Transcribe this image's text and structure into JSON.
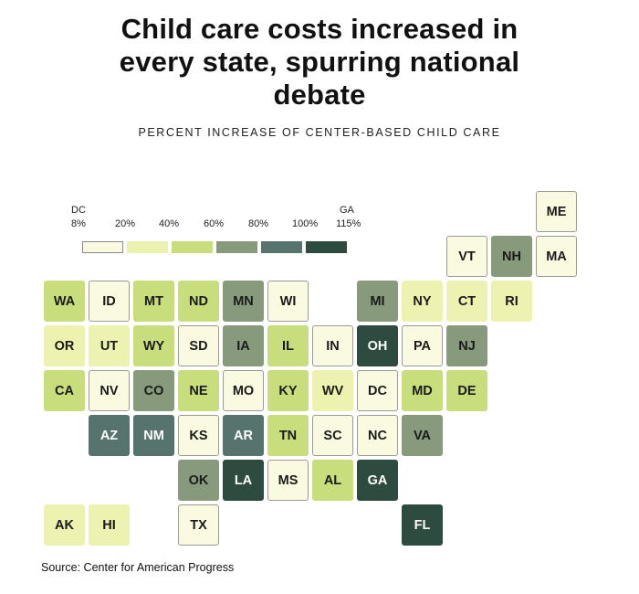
{
  "title": {
    "line1": "Child care costs increased in",
    "line2": "every state, spurring national",
    "line3": "debate"
  },
  "subtitle": "PERCENT INCREASE OF CENTER-BASED CHILD CARE",
  "legend": {
    "min_state": "DC",
    "max_state": "GA",
    "breaks": [
      "8%",
      "20%",
      "40%",
      "60%",
      "80%",
      "100%",
      "115%"
    ],
    "colors": [
      "#fafae0",
      "#eef2b0",
      "#c8de7c",
      "#879a7b",
      "#56736e",
      "#2e4b40"
    ]
  },
  "source": "Source: Center for American Progress",
  "states": [
    {
      "code": "ME",
      "bin": 0
    },
    {
      "code": "VT",
      "bin": 0
    },
    {
      "code": "NH",
      "bin": 3
    },
    {
      "code": "MA",
      "bin": 0
    },
    {
      "code": "WA",
      "bin": 2
    },
    {
      "code": "ID",
      "bin": 0
    },
    {
      "code": "MT",
      "bin": 2
    },
    {
      "code": "ND",
      "bin": 2
    },
    {
      "code": "MN",
      "bin": 3
    },
    {
      "code": "WI",
      "bin": 0
    },
    {
      "code": "MI",
      "bin": 3
    },
    {
      "code": "NY",
      "bin": 1
    },
    {
      "code": "CT",
      "bin": 1
    },
    {
      "code": "RI",
      "bin": 1
    },
    {
      "code": "OR",
      "bin": 1
    },
    {
      "code": "UT",
      "bin": 1
    },
    {
      "code": "WY",
      "bin": 2
    },
    {
      "code": "SD",
      "bin": 0
    },
    {
      "code": "IA",
      "bin": 3
    },
    {
      "code": "IL",
      "bin": 2
    },
    {
      "code": "IN",
      "bin": 0
    },
    {
      "code": "OH",
      "bin": 5
    },
    {
      "code": "PA",
      "bin": 0
    },
    {
      "code": "NJ",
      "bin": 3
    },
    {
      "code": "CA",
      "bin": 2
    },
    {
      "code": "NV",
      "bin": 0
    },
    {
      "code": "CO",
      "bin": 3
    },
    {
      "code": "NE",
      "bin": 2
    },
    {
      "code": "MO",
      "bin": 0
    },
    {
      "code": "KY",
      "bin": 2
    },
    {
      "code": "WV",
      "bin": 1
    },
    {
      "code": "DC",
      "bin": 0
    },
    {
      "code": "MD",
      "bin": 2
    },
    {
      "code": "DE",
      "bin": 2
    },
    {
      "code": "AZ",
      "bin": 4
    },
    {
      "code": "NM",
      "bin": 4
    },
    {
      "code": "KS",
      "bin": 0
    },
    {
      "code": "AR",
      "bin": 4
    },
    {
      "code": "TN",
      "bin": 2
    },
    {
      "code": "SC",
      "bin": 0
    },
    {
      "code": "NC",
      "bin": 0
    },
    {
      "code": "VA",
      "bin": 3
    },
    {
      "code": "OK",
      "bin": 3
    },
    {
      "code": "LA",
      "bin": 5
    },
    {
      "code": "MS",
      "bin": 0
    },
    {
      "code": "AL",
      "bin": 2
    },
    {
      "code": "GA",
      "bin": 5
    },
    {
      "code": "AK",
      "bin": 1
    },
    {
      "code": "HI",
      "bin": 1
    },
    {
      "code": "TX",
      "bin": 0
    },
    {
      "code": "FL",
      "bin": 5
    }
  ]
}
